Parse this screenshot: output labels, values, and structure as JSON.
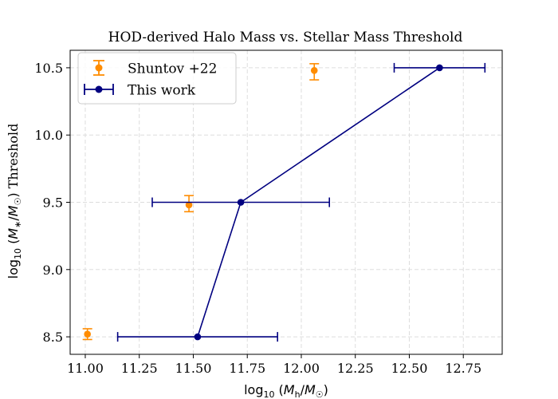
{
  "chart_data": {
    "type": "scatter",
    "title": "HOD-derived Halo Mass vs. Stellar Mass Threshold",
    "xlabel": "log10 (Mh/M☉)",
    "ylabel": "log10 (M*/M☉) Threshold",
    "xlim": [
      10.93,
      12.93
    ],
    "ylim": [
      8.37,
      10.63
    ],
    "x_ticks": [
      11.0,
      11.25,
      11.5,
      11.75,
      12.0,
      12.25,
      12.5,
      12.75
    ],
    "x_tick_labels": [
      "11.00",
      "11.25",
      "11.50",
      "11.75",
      "12.00",
      "12.25",
      "12.50",
      "12.75"
    ],
    "y_ticks": [
      8.5,
      9.0,
      9.5,
      10.0,
      10.5
    ],
    "y_tick_labels": [
      "8.5",
      "9.0",
      "9.5",
      "10.0",
      "10.5"
    ],
    "grid": true,
    "legend_position": "top-left",
    "series": [
      {
        "name": "Shuntov +22",
        "color": "#ff8c00",
        "style": "markers",
        "points": [
          {
            "x": 11.01,
            "y": 8.52,
            "yerr_low": 0.04,
            "yerr_high": 0.04
          },
          {
            "x": 11.48,
            "y": 9.48,
            "yerr_low": 0.05,
            "yerr_high": 0.07
          },
          {
            "x": 12.06,
            "y": 10.48,
            "yerr_low": 0.07,
            "yerr_high": 0.05
          }
        ]
      },
      {
        "name": "This work",
        "color": "#000080",
        "style": "line+markers",
        "points": [
          {
            "x": 11.52,
            "y": 8.5,
            "xerr_low": 0.37,
            "xerr_high": 0.37
          },
          {
            "x": 11.72,
            "y": 9.5,
            "xerr_low": 0.41,
            "xerr_high": 0.41
          },
          {
            "x": 12.64,
            "y": 10.5,
            "xerr_low": 0.21,
            "xerr_high": 0.21
          }
        ]
      }
    ]
  }
}
